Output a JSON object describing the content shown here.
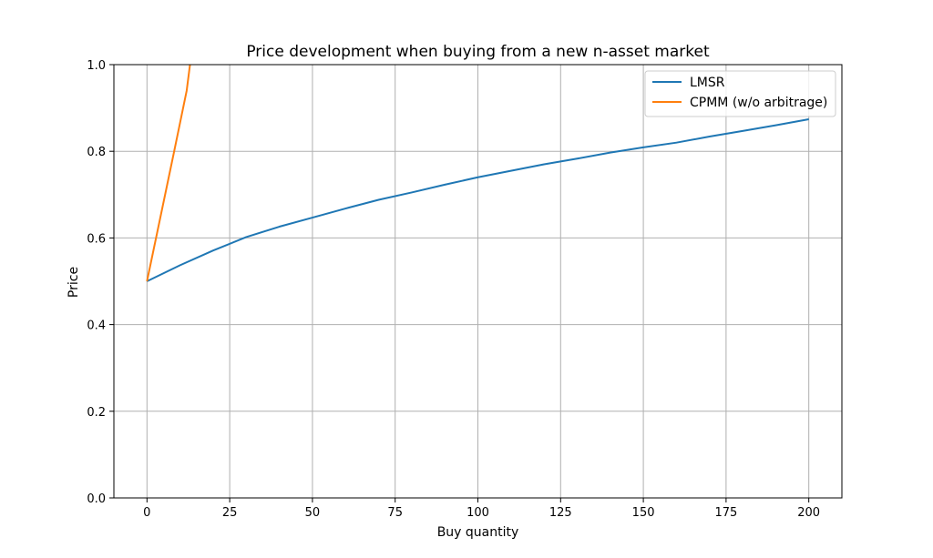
{
  "chart_data": {
    "type": "line",
    "title": "Price development when buying from a new n-asset market",
    "xlabel": "Buy quantity",
    "ylabel": "Price",
    "xlim": [
      -10,
      210
    ],
    "ylim": [
      0.0,
      1.0
    ],
    "x_ticks": [
      0,
      25,
      50,
      75,
      100,
      125,
      150,
      175,
      200
    ],
    "x_tick_labels": [
      "0",
      "25",
      "50",
      "75",
      "100",
      "125",
      "150",
      "175",
      "200"
    ],
    "y_ticks": [
      0.0,
      0.2,
      0.4,
      0.6,
      0.8,
      1.0
    ],
    "y_tick_labels": [
      "0.0",
      "0.2",
      "0.4",
      "0.6",
      "0.8",
      "1.0"
    ],
    "grid": true,
    "legend": "top-right",
    "series": [
      {
        "name": "LMSR",
        "color": "#1f77b4",
        "x": [
          0,
          10,
          20,
          30,
          40,
          50,
          60,
          70,
          80,
          90,
          100,
          110,
          120,
          130,
          140,
          150,
          160,
          170,
          180,
          190,
          200
        ],
        "y": [
          0.5,
          0.537,
          0.571,
          0.602,
          0.626,
          0.647,
          0.668,
          0.688,
          0.705,
          0.723,
          0.74,
          0.755,
          0.77,
          0.783,
          0.797,
          0.809,
          0.82,
          0.834,
          0.847,
          0.86,
          0.874
        ]
      },
      {
        "name": "CPMM (w/o arbitrage)",
        "color": "#ff7f0e",
        "x": [
          0,
          2,
          4,
          6,
          8,
          10,
          12,
          13
        ],
        "y": [
          0.5,
          0.573,
          0.646,
          0.719,
          0.792,
          0.866,
          0.94,
          1.0
        ]
      }
    ]
  }
}
